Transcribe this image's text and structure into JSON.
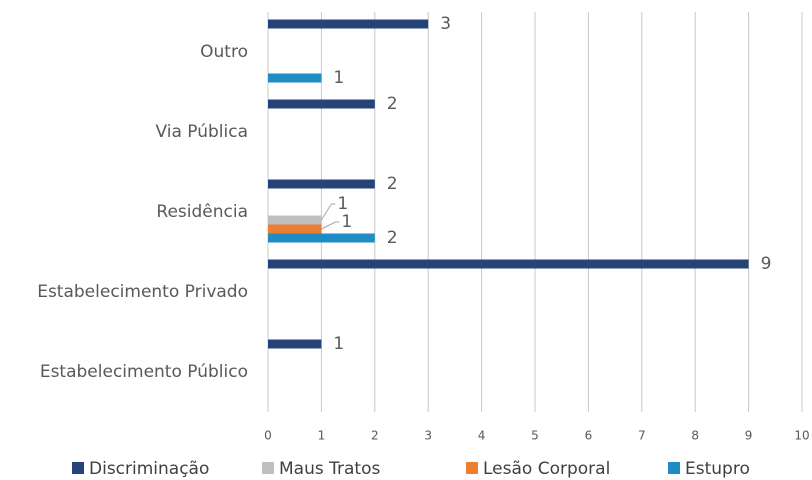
{
  "chart_data": {
    "type": "barh",
    "categories": [
      "Estabelecimento Público",
      "Estabelecimento Privado",
      "Residência",
      "Via Pública",
      "Outro"
    ],
    "series": [
      {
        "name": "Discriminação",
        "color": "#264478",
        "values": [
          1,
          9,
          2,
          2,
          3
        ]
      },
      {
        "name": "Maus Tratos",
        "color": "#bfbfbf",
        "values": [
          null,
          null,
          1,
          null,
          null
        ]
      },
      {
        "name": "Lesão Corporal",
        "color": "#ed7d31",
        "values": [
          null,
          null,
          1,
          null,
          null
        ]
      },
      {
        "name": "Estupro",
        "color": "#1f8cc4",
        "values": [
          null,
          null,
          2,
          null,
          1
        ]
      }
    ],
    "xlim": [
      0,
      10
    ],
    "xticks": [
      0,
      1,
      2,
      3,
      4,
      5,
      6,
      7,
      8,
      9,
      10
    ],
    "grid": true,
    "legend": "bottom"
  }
}
